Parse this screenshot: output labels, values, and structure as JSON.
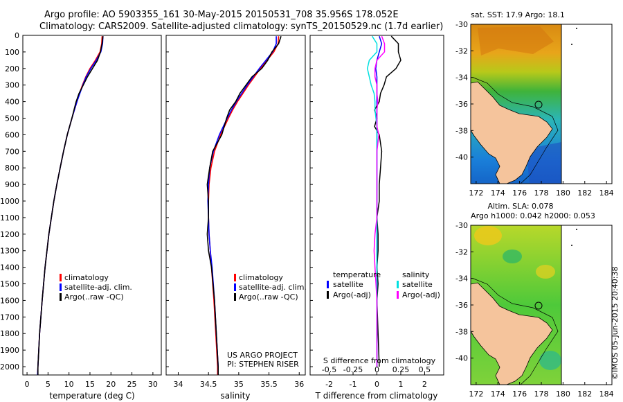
{
  "header": {
    "line1": "Argo profile: AO 5903355_161 30-May-2015 20150531_708 35.956S 178.052E",
    "line2": "Climatology: CARS2009. Satellite-adjusted climatology: synTS_20150529.nc (1.7d earlier)"
  },
  "depth_ticks": [
    "0",
    "100",
    "200",
    "300",
    "400",
    "500",
    "600",
    "700",
    "800",
    "900",
    "1000",
    "1100",
    "1200",
    "1300",
    "1400",
    "1500",
    "1600",
    "1700",
    "1800",
    "1900",
    "2000"
  ],
  "colors": {
    "climatology": "#ff0000",
    "satellite": "#0000ff",
    "argo": "#000000",
    "sat_salinity": "#00e0e0",
    "argo_salinity": "#ff00ff",
    "land": "#f5c49c"
  },
  "chart_data": [
    {
      "type": "line",
      "name": "temperature",
      "xlabel": "temperature (deg C)",
      "ylabel": "depth",
      "xlim": [
        -1,
        32
      ],
      "ylim": [
        2050,
        0
      ],
      "xticks": [
        "0",
        "5",
        "10",
        "15",
        "20",
        "25",
        "30"
      ],
      "xtick_values": [
        0,
        5,
        10,
        15,
        20,
        25,
        30
      ],
      "legend": [
        "climatology",
        "satellite-adj. clim.",
        "Argo(..raw -QC)"
      ],
      "depth": [
        5,
        50,
        100,
        150,
        200,
        250,
        300,
        350,
        400,
        450,
        500,
        600,
        700,
        800,
        900,
        1000,
        1200,
        1400,
        1600,
        1800,
        2000,
        2050
      ],
      "series": [
        {
          "name": "climatology",
          "color": "#ff0000",
          "values": [
            17.9,
            17.8,
            17.4,
            16.3,
            15.0,
            14.0,
            13.2,
            12.5,
            11.9,
            11.3,
            10.7,
            9.6,
            8.7,
            7.9,
            7.1,
            6.4,
            5.2,
            4.3,
            3.6,
            3.0,
            2.6,
            2.5
          ]
        },
        {
          "name": "satellite-adj. clim.",
          "color": "#0000ff",
          "values": [
            18.1,
            18.0,
            17.6,
            16.5,
            15.2,
            14.1,
            13.3,
            12.6,
            11.9,
            11.3,
            10.7,
            9.6,
            8.7,
            7.9,
            7.1,
            6.4,
            5.2,
            4.3,
            3.6,
            3.0,
            2.6,
            2.5
          ]
        },
        {
          "name": "Argo(..raw -QC)",
          "color": "#000000",
          "values": [
            18.1,
            17.9,
            17.5,
            16.8,
            15.6,
            14.4,
            13.4,
            12.4,
            11.7,
            11.2,
            10.7,
            9.6,
            8.7,
            7.9,
            7.1,
            6.4,
            5.2,
            4.3,
            3.6,
            3.0,
            2.6,
            2.6
          ]
        }
      ]
    },
    {
      "type": "line",
      "name": "salinity",
      "xlabel": "salinity",
      "ylabel": "depth",
      "xlim": [
        33.8,
        36.1
      ],
      "ylim": [
        2050,
        0
      ],
      "xticks": [
        "34",
        "34.5",
        "35",
        "35.5",
        "36"
      ],
      "xtick_values": [
        34,
        34.5,
        35,
        35.5,
        36
      ],
      "legend": [
        "climatology",
        "satellite-adj. clim.",
        "Argo(..raw -QC)"
      ],
      "annotation": [
        "US ARGO PROJECT",
        "PI: STEPHEN RISER"
      ],
      "depth": [
        5,
        50,
        100,
        150,
        200,
        250,
        300,
        350,
        400,
        450,
        500,
        600,
        700,
        800,
        900,
        1000,
        1100,
        1200,
        1300,
        1400,
        1600,
        1800,
        2000,
        2050
      ],
      "series": [
        {
          "name": "climatology",
          "color": "#ff0000",
          "values": [
            35.66,
            35.65,
            35.58,
            35.47,
            35.36,
            35.26,
            35.16,
            35.07,
            34.98,
            34.9,
            34.83,
            34.7,
            34.6,
            34.54,
            34.51,
            34.5,
            34.5,
            34.51,
            34.53,
            34.55,
            34.59,
            34.62,
            34.65,
            34.65
          ]
        },
        {
          "name": "satellite-adj. clim.",
          "color": "#0000ff",
          "values": [
            35.62,
            35.62,
            35.56,
            35.45,
            35.34,
            35.24,
            35.14,
            35.05,
            34.96,
            34.88,
            34.81,
            34.68,
            34.58,
            34.52,
            34.5,
            34.49,
            34.5,
            34.51,
            34.53,
            34.56,
            34.6,
            34.63,
            34.66,
            34.66
          ]
        },
        {
          "name": "Argo(..raw -QC)",
          "color": "#000000",
          "values": [
            35.7,
            35.66,
            35.55,
            35.48,
            35.38,
            35.22,
            35.12,
            35.02,
            34.95,
            34.85,
            34.8,
            34.72,
            34.57,
            34.52,
            34.48,
            34.5,
            34.5,
            34.48,
            34.5,
            34.55,
            34.6,
            34.63,
            34.66,
            34.66
          ]
        }
      ]
    },
    {
      "type": "line",
      "name": "differences",
      "xlabel_top": "S difference from climatology",
      "xlabel": "T difference from climatology",
      "xlim": [
        -2.8,
        2.8
      ],
      "ylim": [
        2050,
        0
      ],
      "xticks_T": [
        "-2",
        "-1",
        "0",
        "1",
        "2"
      ],
      "xtick_values_T": [
        -2,
        -1,
        0,
        1,
        2
      ],
      "xticks_S": [
        "-0.5",
        "-0.25",
        "0",
        "0.25",
        "0.5"
      ],
      "xtick_values_S": [
        -0.5,
        -0.25,
        0,
        0.25,
        0.5
      ],
      "legend_temperature_title": "temperature",
      "legend_salinity_title": "salinity",
      "legend_temperature": [
        "satellite",
        "Argo(-adj)"
      ],
      "legend_salinity": [
        "satellite",
        "Argo(-adj)"
      ],
      "depth": [
        5,
        50,
        100,
        150,
        200,
        250,
        300,
        350,
        400,
        450,
        500,
        550,
        600,
        700,
        800,
        900,
        1000,
        1100,
        1200,
        1300,
        1400,
        1500,
        1600,
        1800,
        2000
      ],
      "series": [
        {
          "name": "T satellite",
          "color": "#0000ff",
          "values": [
            0.1,
            0.2,
            0.1,
            0.0,
            -0.05,
            0.0,
            0.0,
            0.0,
            0.0,
            0.0,
            0.0,
            0.0,
            0.0,
            0.0,
            0.0,
            0.0,
            0.0,
            0.0,
            0.0,
            0.0,
            0.0,
            0.0,
            0.0,
            0.0,
            0.0
          ]
        },
        {
          "name": "T Argo(-adj)",
          "color": "#000000",
          "values": [
            0.6,
            0.9,
            0.9,
            1.0,
            0.8,
            0.4,
            0.3,
            0.15,
            0.1,
            -0.1,
            0.0,
            -0.1,
            0.1,
            0.2,
            0.15,
            0.1,
            0.1,
            0.0,
            0.05,
            0.05,
            0.0,
            0.05,
            0.0,
            0.05,
            0.1
          ]
        },
        {
          "name": "S satellite",
          "color": "#00e0e0",
          "values": [
            -0.05,
            0.0,
            0.0,
            -0.08,
            -0.1,
            -0.08,
            -0.06,
            -0.03,
            -0.02,
            -0.02,
            -0.01,
            0.0,
            0.0,
            0.0,
            0.0,
            0.0,
            0.0,
            0.0,
            0.0,
            0.0,
            0.0,
            0.0,
            0.0,
            0.0,
            0.0
          ]
        },
        {
          "name": "S Argo(-adj)",
          "color": "#ff00ff",
          "values": [
            0.05,
            0.08,
            0.08,
            0.0,
            -0.02,
            -0.02,
            0.0,
            0.0,
            0.01,
            0.0,
            0.0,
            0.0,
            0.02,
            0.0,
            0.0,
            0.0,
            0.0,
            0.0,
            -0.02,
            -0.03,
            -0.02,
            -0.01,
            0.0,
            0.0,
            0.0
          ]
        }
      ]
    }
  ],
  "maps": [
    {
      "title_lines": [
        "sat. SST: 17.9 Argo: 18.1"
      ],
      "xticks": [
        "172",
        "174",
        "176",
        "178",
        "180",
        "182",
        "184"
      ],
      "yticks": [
        "-30",
        "-32",
        "-34",
        "-36",
        "-38",
        "-40"
      ],
      "float_lon": 178.05,
      "float_lat": -35.96
    },
    {
      "title_lines": [
        "Altim. SLA: 0.078",
        "Argo h1000: 0.042 h2000: 0.053"
      ],
      "xticks": [
        "172",
        "174",
        "176",
        "178",
        "180",
        "182",
        "184"
      ],
      "yticks": [
        "-30",
        "-32",
        "-34",
        "-36",
        "-38",
        "-40"
      ],
      "float_lon": 178.05,
      "float_lat": -35.96
    }
  ],
  "credit": "©IMOS 05-Jun-2015 20:40:38"
}
